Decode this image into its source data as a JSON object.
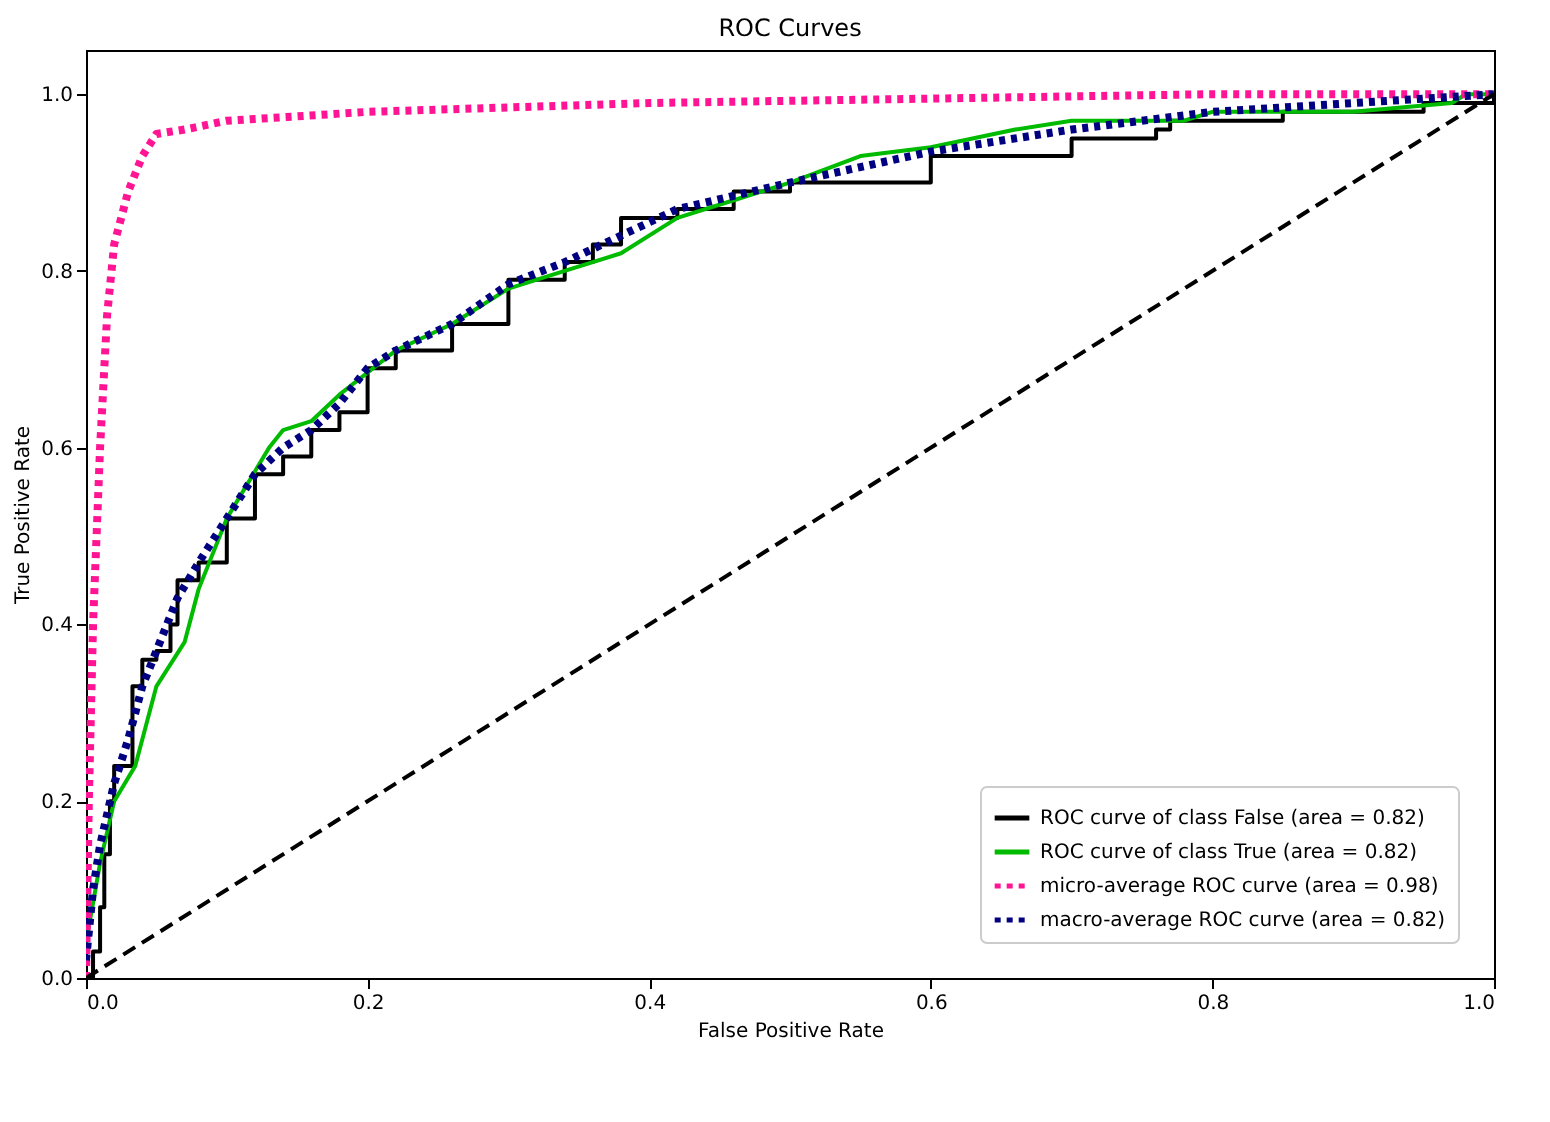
{
  "chart_data": {
    "type": "line",
    "title": "ROC Curves",
    "xlabel": "False Positive Rate",
    "ylabel": "True Positive Rate",
    "xlim": [
      0,
      1
    ],
    "ylim": [
      0,
      1.05
    ],
    "xticks": [
      {
        "value": 0,
        "label": "0.0"
      },
      {
        "value": 0.2,
        "label": "0.2"
      },
      {
        "value": 0.4,
        "label": "0.4"
      },
      {
        "value": 0.6,
        "label": "0.6"
      },
      {
        "value": 0.8,
        "label": "0.8"
      },
      {
        "value": 1,
        "label": "1.0"
      }
    ],
    "yticks": [
      {
        "value": 0,
        "label": "0.0"
      },
      {
        "value": 0.2,
        "label": "0.2"
      },
      {
        "value": 0.4,
        "label": "0.4"
      },
      {
        "value": 0.6,
        "label": "0.6"
      },
      {
        "value": 0.8,
        "label": "0.8"
      },
      {
        "value": 1,
        "label": "1.0"
      }
    ],
    "grid": false,
    "legend": "bottom right",
    "series": [
      {
        "name": "ROC curve of class False (area = 0.82)",
        "color": "#000000",
        "line_style": "solid",
        "type": "step",
        "x": [
          0,
          0.005,
          0.01,
          0.013,
          0.017,
          0.02,
          0.03,
          0.033,
          0.04,
          0.05,
          0.06,
          0.065,
          0.08,
          0.1,
          0.12,
          0.14,
          0.16,
          0.18,
          0.2,
          0.22,
          0.26,
          0.3,
          0.34,
          0.36,
          0.38,
          0.42,
          0.46,
          0.5,
          0.6,
          0.7,
          0.76,
          0.77,
          0.85,
          0.95,
          1
        ],
        "values": [
          0,
          0.03,
          0.08,
          0.14,
          0.2,
          0.24,
          0.24,
          0.33,
          0.36,
          0.37,
          0.4,
          0.45,
          0.47,
          0.52,
          0.57,
          0.59,
          0.62,
          0.64,
          0.69,
          0.71,
          0.74,
          0.79,
          0.81,
          0.83,
          0.86,
          0.87,
          0.89,
          0.9,
          0.93,
          0.95,
          0.96,
          0.97,
          0.98,
          0.99,
          1
        ]
      },
      {
        "name": "ROC curve of class True (area = 0.82)",
        "color": "#00bb00",
        "line_style": "solid",
        "x": [
          0,
          0.01,
          0.02,
          0.035,
          0.05,
          0.07,
          0.08,
          0.1,
          0.13,
          0.14,
          0.16,
          0.18,
          0.22,
          0.26,
          0.3,
          0.34,
          0.38,
          0.42,
          0.46,
          0.5,
          0.55,
          0.6,
          0.66,
          0.7,
          0.78,
          0.8,
          0.9,
          0.97,
          0.98,
          1
        ],
        "values": [
          0.04,
          0.13,
          0.2,
          0.24,
          0.33,
          0.38,
          0.44,
          0.52,
          0.6,
          0.62,
          0.63,
          0.66,
          0.71,
          0.74,
          0.78,
          0.8,
          0.82,
          0.86,
          0.88,
          0.9,
          0.93,
          0.94,
          0.96,
          0.97,
          0.97,
          0.98,
          0.98,
          0.99,
          1,
          1
        ]
      },
      {
        "name": "micro-average ROC curve (area = 0.98)",
        "color": "#ff1493",
        "line_style": "dotted",
        "x": [
          0,
          0.002,
          0.005,
          0.01,
          0.015,
          0.02,
          0.03,
          0.04,
          0.05,
          0.07,
          0.1,
          0.15,
          0.2,
          0.3,
          0.4,
          0.6,
          0.8,
          1
        ],
        "values": [
          0,
          0.2,
          0.4,
          0.6,
          0.75,
          0.83,
          0.89,
          0.93,
          0.955,
          0.96,
          0.97,
          0.975,
          0.98,
          0.985,
          0.99,
          0.995,
          1,
          1
        ]
      },
      {
        "name": "macro-average ROC curve (area = 0.82)",
        "color": "#000080",
        "line_style": "dotted",
        "x": [
          0,
          0.005,
          0.01,
          0.02,
          0.03,
          0.04,
          0.05,
          0.065,
          0.08,
          0.1,
          0.12,
          0.14,
          0.16,
          0.18,
          0.2,
          0.22,
          0.26,
          0.3,
          0.34,
          0.38,
          0.42,
          0.46,
          0.5,
          0.6,
          0.7,
          0.8,
          0.9,
          1
        ],
        "values": [
          0.02,
          0.1,
          0.15,
          0.22,
          0.27,
          0.33,
          0.37,
          0.43,
          0.47,
          0.52,
          0.57,
          0.6,
          0.62,
          0.65,
          0.69,
          0.71,
          0.74,
          0.785,
          0.81,
          0.84,
          0.87,
          0.885,
          0.9,
          0.935,
          0.96,
          0.98,
          0.99,
          1
        ]
      },
      {
        "color": "#000000",
        "line_style": "dashed",
        "x": [
          0,
          1
        ],
        "values": [
          0,
          1
        ]
      }
    ]
  }
}
